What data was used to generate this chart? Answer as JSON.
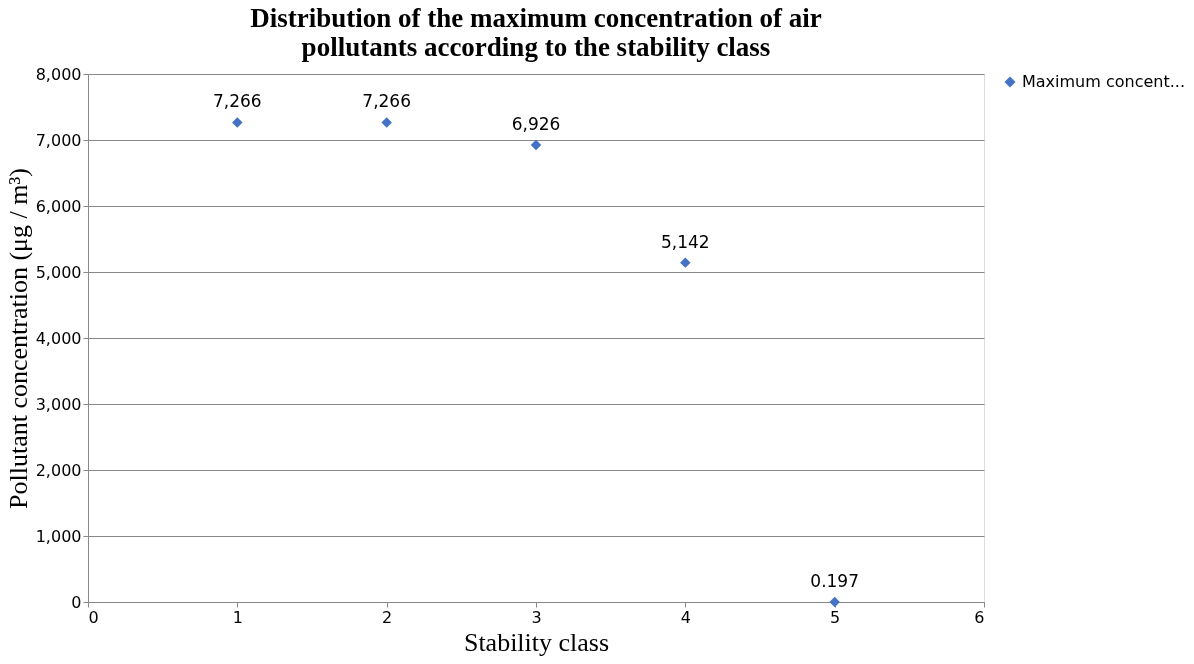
{
  "chart_data": {
    "type": "scatter",
    "title": "Distribution of the maximum concentration of air\npollutants according to the stability class",
    "xlabel": "Stability class",
    "ylabel": "Pollutant concentration (μg / m³)",
    "x": [
      1,
      2,
      3,
      4,
      5
    ],
    "series": [
      {
        "name": "Maximum concent...",
        "color": "#4472c4",
        "values": [
          7266,
          7266,
          6926,
          5142,
          0.197
        ],
        "value_labels": [
          "7,266",
          "7,266",
          "6,926",
          "5,142",
          "0.197"
        ]
      }
    ],
    "xlim": [
      0,
      6
    ],
    "xticks": [
      0,
      1,
      2,
      3,
      4,
      5,
      6
    ],
    "ylim": [
      0,
      8000
    ],
    "yticks": [
      0,
      {
        "value": 1000,
        "label": "1,000"
      },
      {
        "value": 2000,
        "label": "2,000"
      },
      {
        "value": 3000,
        "label": "3,000"
      },
      {
        "value": 4000,
        "label": "4,000"
      },
      {
        "value": 5000,
        "label": "5,000"
      },
      {
        "value": 6000,
        "label": "6,000"
      },
      {
        "value": 7000,
        "label": "7,000"
      },
      {
        "value": 8000,
        "label": "8,000"
      }
    ],
    "grid": "y",
    "legend": "right",
    "marker": "diamond"
  }
}
